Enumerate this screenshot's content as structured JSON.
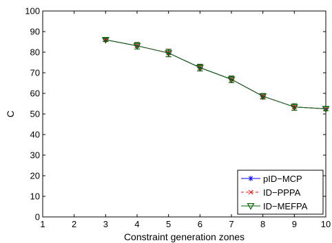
{
  "chart_data": {
    "type": "line",
    "title": "",
    "xlabel": "Constraint generation zones",
    "ylabel": "C",
    "xlim": [
      1,
      10
    ],
    "ylim": [
      0,
      100
    ],
    "xticks": [
      "1",
      "2",
      "3",
      "4",
      "5",
      "6",
      "7",
      "8",
      "9",
      "10"
    ],
    "yticks": [
      "0",
      "10",
      "20",
      "30",
      "40",
      "50",
      "60",
      "70",
      "80",
      "90",
      "100"
    ],
    "x": [
      3,
      4,
      5,
      6,
      7,
      8,
      9,
      10
    ],
    "series": [
      {
        "name": "pID−MCP",
        "color": "#0000ff",
        "marker": "asterisk",
        "line": "solid",
        "values": [
          86.0,
          83.1,
          79.6,
          72.5,
          66.8,
          58.6,
          53.4,
          52.5
        ],
        "errors": [
          0.8,
          1.6,
          1.8,
          1.6,
          1.6,
          1.3,
          1.6,
          1.0
        ]
      },
      {
        "name": "ID−PPPA",
        "color": "#ff0000",
        "marker": "x",
        "line": "dashed",
        "values": [
          86.0,
          83.1,
          79.6,
          72.5,
          66.8,
          58.6,
          53.4,
          52.5
        ],
        "errors": [
          0.8,
          1.6,
          1.8,
          1.6,
          1.6,
          1.3,
          1.6,
          1.0
        ]
      },
      {
        "name": "ID−MEFPA",
        "color": "#006400",
        "marker": "triangle-down",
        "line": "solid",
        "values": [
          86.0,
          83.1,
          79.6,
          72.5,
          66.8,
          58.6,
          53.4,
          52.5
        ],
        "errors": [
          0.8,
          1.6,
          1.8,
          1.6,
          1.6,
          1.3,
          1.6,
          1.0
        ]
      }
    ],
    "grid": false,
    "legend_position": "bottom-right"
  }
}
